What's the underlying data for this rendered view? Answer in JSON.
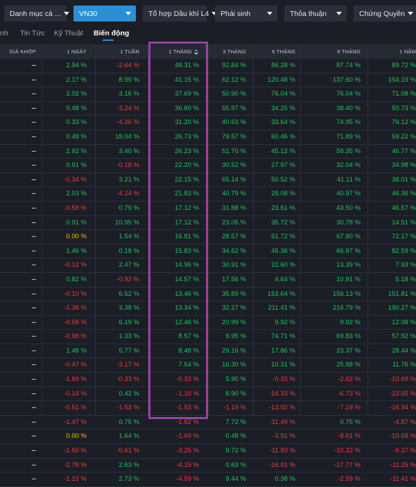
{
  "toolbar": {
    "dropdowns": [
      {
        "label": "Danh mục cá ...",
        "active": false
      },
      {
        "label": "VN30",
        "active": true
      },
      {
        "label": "Tổ hợp Dầu khí L4",
        "active": false
      },
      {
        "label": "Phái sinh",
        "active": false
      },
      {
        "label": "Thỏa thuận",
        "active": false
      },
      {
        "label": "Chứng Quyền",
        "active": false
      }
    ]
  },
  "tabs": [
    {
      "label": "nh",
      "active": false
    },
    {
      "label": "Tin Tức",
      "active": false
    },
    {
      "label": "Kỹ Thuật",
      "active": false
    },
    {
      "label": "Biến động",
      "active": true
    }
  ],
  "columns": [
    "GIÁ KHỚP",
    "1 NGÀY",
    "1 TUẦN",
    "1 THÁNG",
    "3 THÁNG",
    "6 THÁNG",
    "9 THÁNG",
    "1 NĂM"
  ],
  "sorted_column": "1 THÁNG",
  "rows": [
    [
      "--",
      "2.94 %",
      "-2.64 %",
      "48.31 %",
      "92.84 %",
      "86.28 %",
      "87.74 %",
      "89.72 %"
    ],
    [
      "--",
      "2.17 %",
      "8.99 %",
      "41.15 %",
      "62.12 %",
      "120.48 %",
      "137.60 %",
      "154.19 %"
    ],
    [
      "--",
      "2.02 %",
      "3.16 %",
      "37.69 %",
      "50.90 %",
      "76.04 %",
      "76.04 %",
      "71.08 %"
    ],
    [
      "--",
      "0.48 %",
      "-3.24 %",
      "36.60 %",
      "55.97 %",
      "34.25 %",
      "38.40 %",
      "50.73 %"
    ],
    [
      "--",
      "0.33 %",
      "-4.26 %",
      "31.20 %",
      "40.63 %",
      "33.64 %",
      "74.95 %",
      "79.12 %"
    ],
    [
      "--",
      "0.48 %",
      "18.04 %",
      "26.73 %",
      "79.57 %",
      "60.46 %",
      "71.89 %",
      "59.22 %"
    ],
    [
      "--",
      "2.92 %",
      "3.40 %",
      "26.23 %",
      "51.70 %",
      "45.12 %",
      "58.35 %",
      "46.77 %"
    ],
    [
      "--",
      "0.91 %",
      "-0.18 %",
      "22.20 %",
      "30.52 %",
      "27.97 %",
      "32.04 %",
      "34.98 %"
    ],
    [
      "--",
      "-0.34 %",
      "3.21 %",
      "22.15 %",
      "65.14 %",
      "50.52 %",
      "41.11 %",
      "38.01 %"
    ],
    [
      "--",
      "2.03 %",
      "-4.24 %",
      "21.83 %",
      "40.79 %",
      "29.08 %",
      "40.97 %",
      "46.36 %"
    ],
    [
      "--",
      "-0.58 %",
      "0.79 %",
      "17.12 %",
      "31.88 %",
      "23.61 %",
      "43.50 %",
      "46.57 %"
    ],
    [
      "--",
      "0.91 %",
      "10.95 %",
      "17.12 %",
      "23.05 %",
      "35.72 %",
      "30.78 %",
      "14.51 %"
    ],
    [
      "--",
      "0.00 %",
      "1.54 %",
      "16.81 %",
      "28.57 %",
      "51.72 %",
      "67.80 %",
      "72.17 %"
    ],
    [
      "--",
      "1.46 %",
      "0.18 %",
      "15.83 %",
      "34.62 %",
      "45.36 %",
      "66.97 %",
      "82.59 %"
    ],
    [
      "--",
      "-0.12 %",
      "2.47 %",
      "14.96 %",
      "30.91 %",
      "22.60 %",
      "13.39 %",
      "7.93 %"
    ],
    [
      "--",
      "0.82 %",
      "-0.92 %",
      "14.57 %",
      "17.56 %",
      "4.64 %",
      "10.91 %",
      "5.18 %"
    ],
    [
      "--",
      "-0.10 %",
      "6.52 %",
      "13.46 %",
      "35.89 %",
      "153.64 %",
      "156.13 %",
      "151.81 %"
    ],
    [
      "--",
      "-1.38 %",
      "3.38 %",
      "13.34 %",
      "32.27 %",
      "211.41 %",
      "216.79 %",
      "190.27 %"
    ],
    [
      "--",
      "-0.58 %",
      "6.19 %",
      "12.46 %",
      "20.99 %",
      "9.92 %",
      "9.92 %",
      "12.08 %"
    ],
    [
      "--",
      "-0.98 %",
      "1.33 %",
      "8.57 %",
      "9.95 %",
      "74.71 %",
      "69.83 %",
      "57.92 %"
    ],
    [
      "--",
      "1.48 %",
      "5.77 %",
      "8.48 %",
      "29.16 %",
      "17.86 %",
      "23.37 %",
      "28.44 %"
    ],
    [
      "--",
      "-0.47 %",
      "-3.17 %",
      "7.54 %",
      "16.30 %",
      "10.31 %",
      "25.88 %",
      "11.76 %"
    ],
    [
      "--",
      "-1.69 %",
      "-0.33 %",
      "-0.33 %",
      "5.90 %",
      "-0.33 %",
      "-2.62 %",
      "-10.69 %"
    ],
    [
      "--",
      "-0.14 %",
      "0.42 %",
      "-1.10 %",
      "6.90 %",
      "-14.33 %",
      "-6.73 %",
      "-23.55 %"
    ],
    [
      "--",
      "-0.51 %",
      "-1.53 %",
      "-1.53 %",
      "-1.19 %",
      "-13.02 %",
      "-7.19 %",
      "-16.94 %"
    ],
    [
      "--",
      "-1.47 %",
      "0.75 %",
      "-1.62 %",
      "7.72 %",
      "-11.49 %",
      "0.75 %",
      "-4.87 %"
    ],
    [
      "--",
      "0.00 %",
      "1.64 %",
      "-1.69 %",
      "0.48 %",
      "-3.91 %",
      "-8.61 %",
      "-10.68 %"
    ],
    [
      "--",
      "-1.50 %",
      "-0.61 %",
      "-3.25 %",
      "9.72 %",
      "-11.93 %",
      "-10.32 %",
      "-9.37 %"
    ],
    [
      "--",
      "-2.78 %",
      "2.63 %",
      "-4.15 %",
      "0.63 %",
      "-16.01 %",
      "-17.77 %",
      "-11.25 %"
    ],
    [
      "--",
      "-1.15 %",
      "2.73 %",
      "-4.59 %",
      "9.44 %",
      "0.38 %",
      "-2.59 %",
      "-11.41 %"
    ]
  ],
  "colors": {
    "positive": "#21c45a",
    "negative": "#f03a3a",
    "zero": "#f2c400",
    "accent": "#2a8fd6",
    "highlight": "#9b3fa8"
  }
}
